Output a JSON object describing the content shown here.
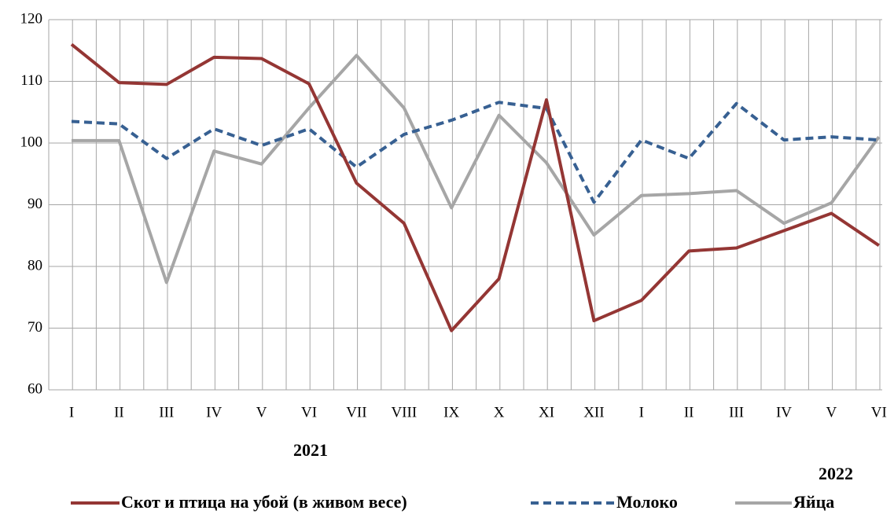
{
  "chart_data": {
    "type": "line",
    "categories": [
      "I",
      "II",
      "III",
      "IV",
      "V",
      "VI",
      "VII",
      "VIII",
      "IX",
      "X",
      "XI",
      "XII",
      "I",
      "II",
      "III",
      "IV",
      "V",
      "VI"
    ],
    "year_labels": [
      "2021",
      "2022"
    ],
    "series": [
      {
        "name": "Скот и птица на убой (в живом весе)",
        "color": "#943634",
        "dash": "solid",
        "values": [
          116,
          109.8,
          109.5,
          113.9,
          113.7,
          109.6,
          93.5,
          87,
          69.6,
          78,
          107,
          71.2,
          74.5,
          82.5,
          83,
          85.8,
          88.6,
          83.4
        ]
      },
      {
        "name": "Молоко",
        "color": "#376092",
        "dash": "dashed",
        "values": [
          103.5,
          103.1,
          97.5,
          102.3,
          99.6,
          102.3,
          96.1,
          101.4,
          103.7,
          106.6,
          105.6,
          90.4,
          100.5,
          97.5,
          106.4,
          100.5,
          101,
          100.5
        ]
      },
      {
        "name": "Яйца",
        "color": "#a6a6a6",
        "dash": "solid",
        "values": [
          100.4,
          100.4,
          77.4,
          98.7,
          96.6,
          105.7,
          114.2,
          105.7,
          89.5,
          104.5,
          96.8,
          85.1,
          91.5,
          91.8,
          92.3,
          87,
          90.3,
          101
        ]
      }
    ],
    "ylim": [
      60,
      120
    ],
    "yticks": [
      60,
      70,
      80,
      90,
      100,
      110,
      120
    ],
    "grid": true
  }
}
